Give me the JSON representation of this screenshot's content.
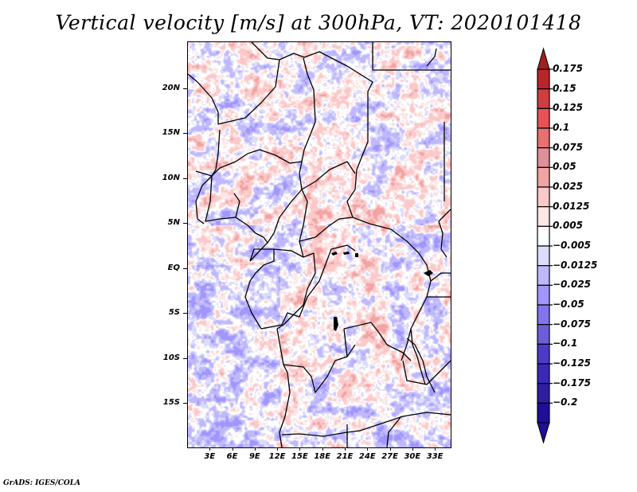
{
  "title": "Vertical velocity [m/s] at 300hPa, VT: 2020101418",
  "footer": "GrADS: IGES/COLA",
  "map": {
    "projection": "lat-lon",
    "lon_range": [
      0,
      35
    ],
    "lat_range": [
      -20,
      25
    ],
    "variable": "Vertical velocity",
    "units": "m/s",
    "level": "300hPa",
    "valid_time": "2020101418",
    "y_ticks": [
      {
        "value": 20,
        "label": "20N"
      },
      {
        "value": 15,
        "label": "15N"
      },
      {
        "value": 10,
        "label": "10N"
      },
      {
        "value": 5,
        "label": "5N"
      },
      {
        "value": 0,
        "label": "EQ"
      },
      {
        "value": -5,
        "label": "5S"
      },
      {
        "value": -10,
        "label": "10S"
      },
      {
        "value": -15,
        "label": "15S"
      }
    ],
    "x_ticks": [
      {
        "value": 3,
        "label": "3E"
      },
      {
        "value": 6,
        "label": "6E"
      },
      {
        "value": 9,
        "label": "9E"
      },
      {
        "value": 12,
        "label": "12E"
      },
      {
        "value": 15,
        "label": "15E"
      },
      {
        "value": 18,
        "label": "18E"
      },
      {
        "value": 21,
        "label": "21E"
      },
      {
        "value": 24,
        "label": "24E"
      },
      {
        "value": 27,
        "label": "27E"
      },
      {
        "value": 30,
        "label": "30E"
      },
      {
        "value": 33,
        "label": "33E"
      }
    ]
  },
  "colorbar": {
    "orientation": "vertical",
    "placement": "right",
    "labels_top_to_bottom": [
      "0.175",
      "0.15",
      "0.125",
      "0.1",
      "0.075",
      "0.05",
      "0.025",
      "0.0125",
      "0.005",
      "-0.005",
      "-0.0125",
      "-0.025",
      "-0.05",
      "-0.075",
      "-0.1",
      "-0.125",
      "-0.175",
      "-0.2"
    ],
    "colors_top_to_bottom": [
      "#a01e24",
      "#b8262b",
      "#cf3e40",
      "#e65256",
      "#e77070",
      "#e09098",
      "#f2a3a3",
      "#fbc9c9",
      "#fde6e6",
      "#ffffff",
      "#dcdcfc",
      "#c0b8fc",
      "#a096fc",
      "#8274ec",
      "#6b5fd8",
      "#4a3cc8",
      "#3c28b8",
      "#2e1ea4",
      "#200e98"
    ],
    "over_color": "#a01e24",
    "under_color": "#200e98"
  },
  "chart_data": {
    "type": "heatmap",
    "title": "Vertical velocity [m/s] at 300hPa, VT: 2020101418",
    "xlabel": "",
    "ylabel": "",
    "x_tick_labels": [
      "3E",
      "6E",
      "9E",
      "12E",
      "15E",
      "18E",
      "21E",
      "24E",
      "27E",
      "30E",
      "33E"
    ],
    "y_tick_labels": [
      "20N",
      "15N",
      "10N",
      "5N",
      "EQ",
      "5S",
      "10S",
      "15S"
    ],
    "xlim": [
      0,
      35
    ],
    "ylim": [
      -20,
      25
    ],
    "color_levels": [
      -0.2,
      -0.175,
      -0.125,
      -0.1,
      -0.075,
      -0.05,
      -0.025,
      -0.0125,
      -0.005,
      0.005,
      0.0125,
      0.025,
      0.05,
      0.075,
      0.1,
      0.125,
      0.15,
      0.175
    ],
    "legend": "right",
    "grid": false
  }
}
